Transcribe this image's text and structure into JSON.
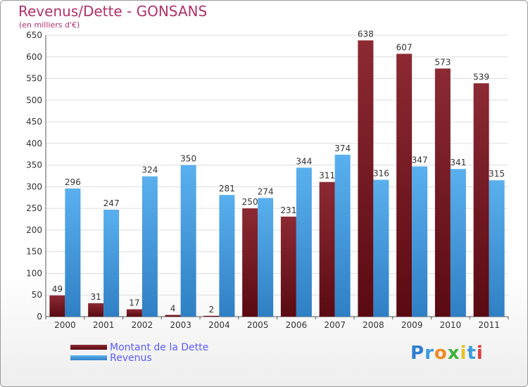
{
  "chart_data": {
    "type": "bar",
    "title": "Revenus/Dette - GONSANS",
    "subtitle": "(en milliers d'€)",
    "categories": [
      "2000",
      "2001",
      "2002",
      "2003",
      "2004",
      "2005",
      "2006",
      "2007",
      "2008",
      "2009",
      "2010",
      "2011"
    ],
    "series": [
      {
        "name": "Montant de la Dette",
        "values": [
          49,
          31,
          17,
          4,
          2,
          250,
          231,
          311,
          638,
          607,
          573,
          539
        ],
        "color": "#7a1520"
      },
      {
        "name": "Revenus",
        "values": [
          296,
          247,
          324,
          350,
          281,
          274,
          344,
          374,
          316,
          347,
          341,
          315
        ],
        "color": "#4aa3e6"
      }
    ],
    "ylim": [
      0,
      650
    ],
    "yticks": [
      0,
      50,
      100,
      150,
      200,
      250,
      300,
      350,
      400,
      450,
      500,
      550,
      600,
      650
    ],
    "grid": true,
    "legend_position": "bottom-left"
  },
  "brand": {
    "letters": [
      "P",
      "r",
      "o",
      "x",
      "i",
      "t",
      "i"
    ],
    "colors": [
      "#2f7fd0",
      "#3a9be0",
      "#f08a24",
      "#3cb33c",
      "#e8c020",
      "#3a9be0",
      "#e23c3c"
    ]
  }
}
